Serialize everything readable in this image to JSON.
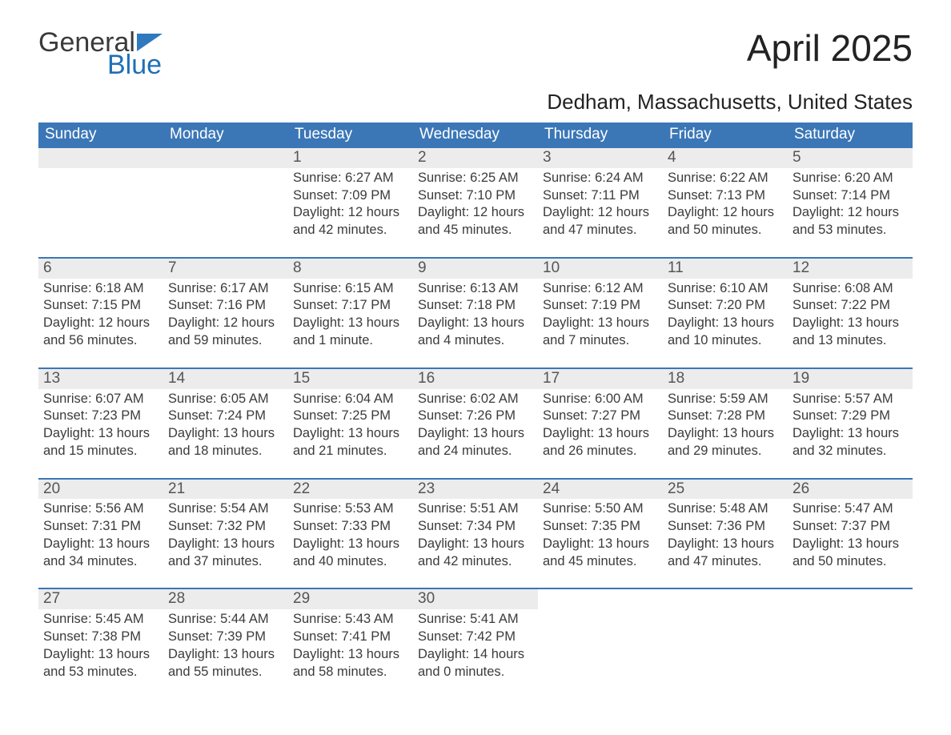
{
  "brand": {
    "line1": "General",
    "line2": "Blue"
  },
  "title": "April 2025",
  "subtitle": "Dedham, Massachusetts, United States",
  "colors": {
    "header_bg": "#3b77b7",
    "accent_blue": "#1f70b8",
    "row_border": "#3b77b7",
    "daynum_bg": "#ececec",
    "text": "#333333",
    "page_bg": "#ffffff"
  },
  "typography": {
    "title_fontsize": 46,
    "subtitle_fontsize": 26,
    "header_fontsize": 19,
    "daynum_fontsize": 19,
    "body_fontsize": 16.5,
    "font_family": "Segoe UI"
  },
  "layout": {
    "columns": 7,
    "leading_blanks": 2,
    "trailing_blanks": 3
  },
  "weekdays": [
    "Sunday",
    "Monday",
    "Tuesday",
    "Wednesday",
    "Thursday",
    "Friday",
    "Saturday"
  ],
  "labels": {
    "sunrise": "Sunrise: ",
    "sunset": "Sunset: ",
    "daylight": "Daylight: "
  },
  "days": [
    {
      "n": 1,
      "sunrise": "6:27 AM",
      "sunset": "7:09 PM",
      "daylight": "12 hours and 42 minutes."
    },
    {
      "n": 2,
      "sunrise": "6:25 AM",
      "sunset": "7:10 PM",
      "daylight": "12 hours and 45 minutes."
    },
    {
      "n": 3,
      "sunrise": "6:24 AM",
      "sunset": "7:11 PM",
      "daylight": "12 hours and 47 minutes."
    },
    {
      "n": 4,
      "sunrise": "6:22 AM",
      "sunset": "7:13 PM",
      "daylight": "12 hours and 50 minutes."
    },
    {
      "n": 5,
      "sunrise": "6:20 AM",
      "sunset": "7:14 PM",
      "daylight": "12 hours and 53 minutes."
    },
    {
      "n": 6,
      "sunrise": "6:18 AM",
      "sunset": "7:15 PM",
      "daylight": "12 hours and 56 minutes."
    },
    {
      "n": 7,
      "sunrise": "6:17 AM",
      "sunset": "7:16 PM",
      "daylight": "12 hours and 59 minutes."
    },
    {
      "n": 8,
      "sunrise": "6:15 AM",
      "sunset": "7:17 PM",
      "daylight": "13 hours and 1 minute."
    },
    {
      "n": 9,
      "sunrise": "6:13 AM",
      "sunset": "7:18 PM",
      "daylight": "13 hours and 4 minutes."
    },
    {
      "n": 10,
      "sunrise": "6:12 AM",
      "sunset": "7:19 PM",
      "daylight": "13 hours and 7 minutes."
    },
    {
      "n": 11,
      "sunrise": "6:10 AM",
      "sunset": "7:20 PM",
      "daylight": "13 hours and 10 minutes."
    },
    {
      "n": 12,
      "sunrise": "6:08 AM",
      "sunset": "7:22 PM",
      "daylight": "13 hours and 13 minutes."
    },
    {
      "n": 13,
      "sunrise": "6:07 AM",
      "sunset": "7:23 PM",
      "daylight": "13 hours and 15 minutes."
    },
    {
      "n": 14,
      "sunrise": "6:05 AM",
      "sunset": "7:24 PM",
      "daylight": "13 hours and 18 minutes."
    },
    {
      "n": 15,
      "sunrise": "6:04 AM",
      "sunset": "7:25 PM",
      "daylight": "13 hours and 21 minutes."
    },
    {
      "n": 16,
      "sunrise": "6:02 AM",
      "sunset": "7:26 PM",
      "daylight": "13 hours and 24 minutes."
    },
    {
      "n": 17,
      "sunrise": "6:00 AM",
      "sunset": "7:27 PM",
      "daylight": "13 hours and 26 minutes."
    },
    {
      "n": 18,
      "sunrise": "5:59 AM",
      "sunset": "7:28 PM",
      "daylight": "13 hours and 29 minutes."
    },
    {
      "n": 19,
      "sunrise": "5:57 AM",
      "sunset": "7:29 PM",
      "daylight": "13 hours and 32 minutes."
    },
    {
      "n": 20,
      "sunrise": "5:56 AM",
      "sunset": "7:31 PM",
      "daylight": "13 hours and 34 minutes."
    },
    {
      "n": 21,
      "sunrise": "5:54 AM",
      "sunset": "7:32 PM",
      "daylight": "13 hours and 37 minutes."
    },
    {
      "n": 22,
      "sunrise": "5:53 AM",
      "sunset": "7:33 PM",
      "daylight": "13 hours and 40 minutes."
    },
    {
      "n": 23,
      "sunrise": "5:51 AM",
      "sunset": "7:34 PM",
      "daylight": "13 hours and 42 minutes."
    },
    {
      "n": 24,
      "sunrise": "5:50 AM",
      "sunset": "7:35 PM",
      "daylight": "13 hours and 45 minutes."
    },
    {
      "n": 25,
      "sunrise": "5:48 AM",
      "sunset": "7:36 PM",
      "daylight": "13 hours and 47 minutes."
    },
    {
      "n": 26,
      "sunrise": "5:47 AM",
      "sunset": "7:37 PM",
      "daylight": "13 hours and 50 minutes."
    },
    {
      "n": 27,
      "sunrise": "5:45 AM",
      "sunset": "7:38 PM",
      "daylight": "13 hours and 53 minutes."
    },
    {
      "n": 28,
      "sunrise": "5:44 AM",
      "sunset": "7:39 PM",
      "daylight": "13 hours and 55 minutes."
    },
    {
      "n": 29,
      "sunrise": "5:43 AM",
      "sunset": "7:41 PM",
      "daylight": "13 hours and 58 minutes."
    },
    {
      "n": 30,
      "sunrise": "5:41 AM",
      "sunset": "7:42 PM",
      "daylight": "14 hours and 0 minutes."
    }
  ]
}
